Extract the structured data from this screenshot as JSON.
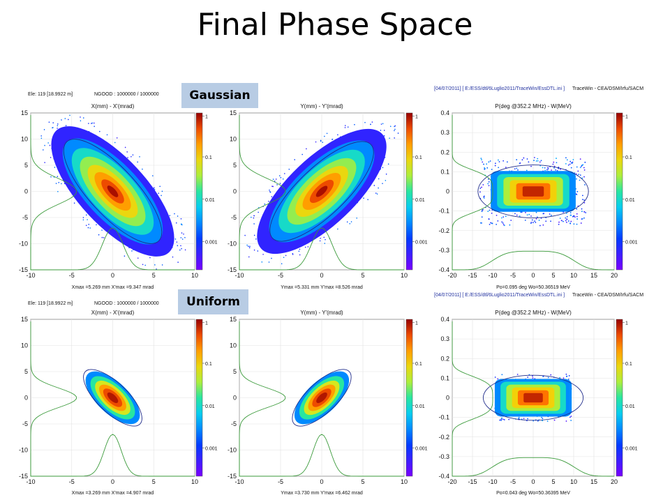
{
  "title": "Final Phase Space",
  "labels": {
    "gaussian": "Gaussian",
    "uniform": "Uniform"
  },
  "rows": [
    {
      "header_left": "Ele: 119 [18.9922 m]",
      "header_ngood": "NGOOD : 1000000 / 1000000",
      "header_file": "[04/07/2011] [ E:/ESS/dtl/6Luglio2011/TraceWin/EssDTL.ini ]",
      "header_tracewin": "TraceWin - CEA/DSM/Irfu/SACM",
      "x_info": "Xmax =5.269 mm  X'max =9.347 mrad",
      "y_info": "Ymax =5.331 mm  Y'max =8.526 mrad",
      "z_info": "Po=0.095 deg  Wo=50.36519 MeV"
    },
    {
      "header_left": "Ele: 119 [18.9922 m]",
      "header_ngood": "NGOOD : 1000000 / 1000000",
      "header_file": "[04/07/2011] [ E:/ESS/dtl/6Luglio2011/TraceWin/EssDTL.ini ]",
      "header_tracewin": "TraceWin - CEA/DSM/Irfu/SACM",
      "x_info": "Xmax =3.269 mm  X'max =4.907 mrad",
      "y_info": "Ymax =3.730 mm  Y'max =6.462 mrad",
      "z_info": "Po=0.043 deg  Wo=50.36395 MeV"
    }
  ],
  "chart_data": [
    {
      "type": "heatmap",
      "title": "X(mm) - X'(mrad)",
      "distribution": "Gaussian",
      "xlim": [
        -10,
        10
      ],
      "ylim": [
        -15,
        15
      ],
      "xticks": [
        -10,
        -5,
        0,
        5,
        10
      ],
      "yticks": [
        15,
        10,
        5,
        0,
        -5,
        -10,
        -15
      ],
      "colorbar_ticks": [
        "1",
        "0.1",
        "0.01",
        "0.001"
      ],
      "ellipse_slope": -1.7,
      "core_length": 7.5,
      "core_width": 1.9
    },
    {
      "type": "heatmap",
      "title": "Y(mm) - Y'(mrad)",
      "distribution": "Gaussian",
      "xlim": [
        -10,
        10
      ],
      "ylim": [
        -15,
        15
      ],
      "xticks": [
        -10,
        -5,
        0,
        5,
        10
      ],
      "yticks": [
        15,
        10,
        5,
        0,
        -5,
        -10,
        -15
      ],
      "colorbar_ticks": [
        "1",
        "0.1",
        "0.01",
        "0.001"
      ],
      "ellipse_slope": 1.5,
      "core_length": 7.5,
      "core_width": 1.9
    },
    {
      "type": "heatmap",
      "title": "P(deg @352.2 MHz) - W(MeV)",
      "distribution": "Gaussian",
      "xlim": [
        -20,
        20
      ],
      "ylim": [
        -0.4,
        0.4
      ],
      "xticks": [
        -20,
        -15,
        -10,
        -5,
        0,
        5,
        10,
        15,
        20
      ],
      "yticks": [
        0.4,
        0.3,
        0.2,
        0.1,
        0,
        -0.1,
        -0.2,
        -0.3,
        -0.4
      ],
      "colorbar_ticks": [
        "1",
        "0.1",
        "0.01",
        "0.001"
      ]
    },
    {
      "type": "heatmap",
      "title": "X(mm) - X'(mrad)",
      "distribution": "Uniform",
      "xlim": [
        -10,
        10
      ],
      "ylim": [
        -15,
        15
      ],
      "xticks": [
        -10,
        -5,
        0,
        5,
        10
      ],
      "yticks": [
        15,
        10,
        5,
        0,
        -5,
        -10,
        -15
      ],
      "colorbar_ticks": [
        "1",
        "0.1",
        "0.01",
        "0.001"
      ],
      "ellipse_slope": -1.5,
      "core_length": 4.2,
      "core_width": 1.2
    },
    {
      "type": "heatmap",
      "title": "Y(mm) - Y'(mrad)",
      "distribution": "Uniform",
      "xlim": [
        -10,
        10
      ],
      "ylim": [
        -15,
        15
      ],
      "xticks": [
        -10,
        -5,
        0,
        5,
        10
      ],
      "yticks": [
        15,
        10,
        5,
        0,
        -5,
        -10,
        -15
      ],
      "colorbar_ticks": [
        "1",
        "0.1",
        "0.01",
        "0.001"
      ],
      "ellipse_slope": 1.5,
      "core_length": 4.2,
      "core_width": 1.2
    },
    {
      "type": "heatmap",
      "title": "P(deg @352.2 MHz) - W(MeV)",
      "distribution": "Uniform",
      "xlim": [
        -20,
        20
      ],
      "ylim": [
        -0.4,
        0.4
      ],
      "xticks": [
        -20,
        -15,
        -10,
        -5,
        0,
        5,
        10,
        15,
        20
      ],
      "yticks": [
        0.4,
        0.3,
        0.2,
        0.1,
        0,
        -0.1,
        -0.2,
        -0.3,
        -0.4
      ],
      "colorbar_ticks": [
        "1",
        "0.1",
        "0.01",
        "0.001"
      ]
    }
  ]
}
